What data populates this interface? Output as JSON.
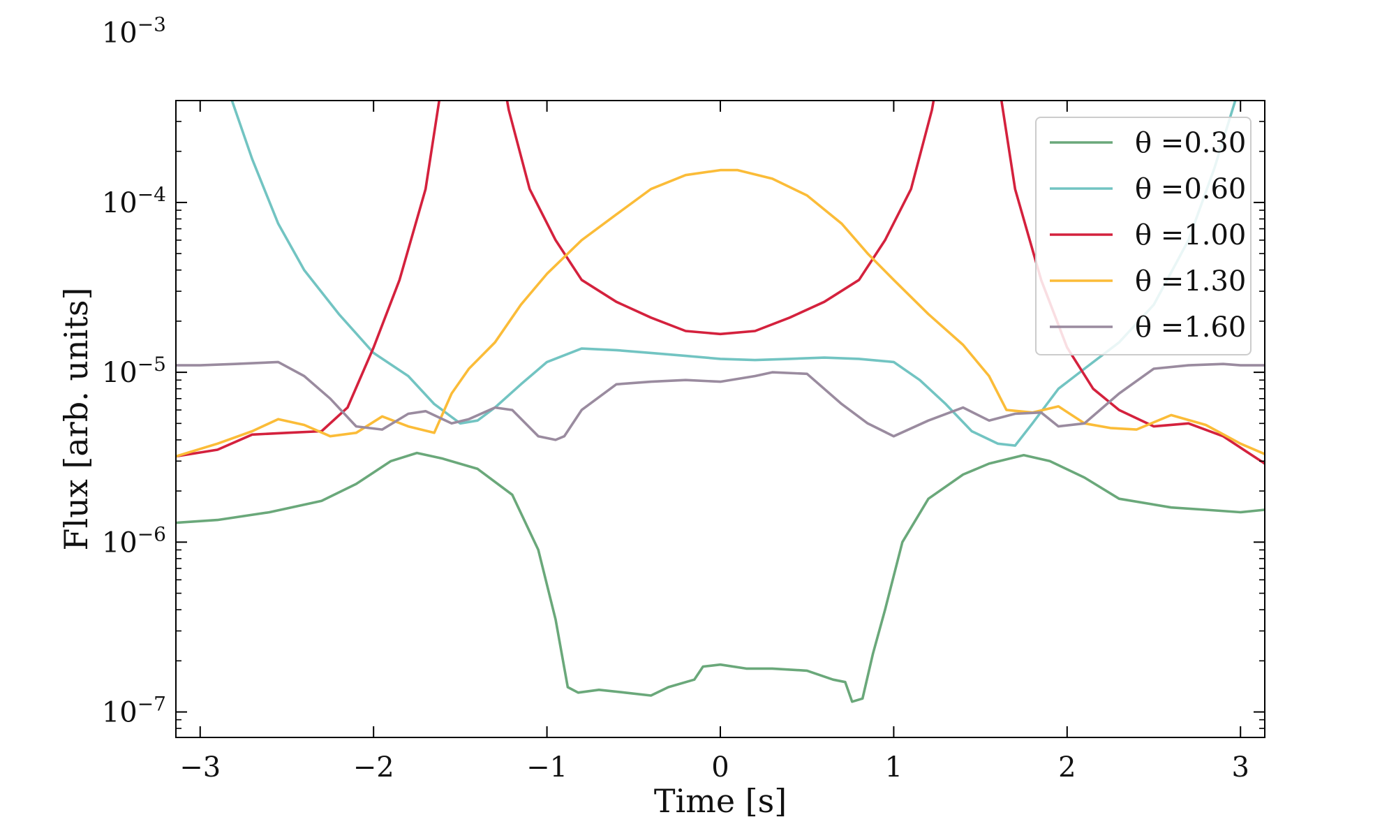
{
  "chart_data": {
    "type": "line",
    "xlabel": "Time [s]",
    "ylabel": "Flux [arb. units]",
    "xlim": [
      -3.14,
      3.14
    ],
    "ylim_log10": [
      -7.15,
      -3.4
    ],
    "yscale": "log",
    "x_ticks": [
      {
        "value": -3,
        "label": "−3"
      },
      {
        "value": -2,
        "label": "−2"
      },
      {
        "value": -1,
        "label": "−1"
      },
      {
        "value": 0,
        "label": "0"
      },
      {
        "value": 1,
        "label": "1"
      },
      {
        "value": 2,
        "label": "2"
      },
      {
        "value": 3,
        "label": "3"
      }
    ],
    "y_ticks": [
      {
        "exp": -7,
        "base": "10",
        "sup": "−7"
      },
      {
        "exp": -6,
        "base": "10",
        "sup": "−6"
      },
      {
        "exp": -5,
        "base": "10",
        "sup": "−5"
      },
      {
        "exp": -4,
        "base": "10",
        "sup": "−4"
      },
      {
        "exp": -3,
        "base": "10",
        "sup": "−3"
      }
    ],
    "grid": false,
    "legend_position": "top-right",
    "series": [
      {
        "name": "θ =0.30",
        "color": "#6aa87a",
        "x": [
          -3.14,
          -2.9,
          -2.6,
          -2.3,
          -2.1,
          -1.9,
          -1.75,
          -1.6,
          -1.4,
          -1.2,
          -1.05,
          -0.95,
          -0.88,
          -0.82,
          -0.7,
          -0.55,
          -0.4,
          -0.3,
          -0.15,
          -0.1,
          0.0,
          0.15,
          0.3,
          0.5,
          0.65,
          0.72,
          0.76,
          0.82,
          0.88,
          0.95,
          1.05,
          1.2,
          1.4,
          1.55,
          1.75,
          1.9,
          2.1,
          2.3,
          2.6,
          2.8,
          3.0,
          3.14
        ],
        "y": [
          1.3e-06,
          1.35e-06,
          1.5e-06,
          1.75e-06,
          2.2e-06,
          3e-06,
          3.35e-06,
          3.1e-06,
          2.7e-06,
          1.9e-06,
          9e-07,
          3.5e-07,
          1.4e-07,
          1.3e-07,
          1.35e-07,
          1.3e-07,
          1.25e-07,
          1.4e-07,
          1.55e-07,
          1.85e-07,
          1.9e-07,
          1.8e-07,
          1.8e-07,
          1.75e-07,
          1.55e-07,
          1.5e-07,
          1.15e-07,
          1.2e-07,
          2.2e-07,
          4e-07,
          1e-06,
          1.8e-06,
          2.5e-06,
          2.9e-06,
          3.25e-06,
          3e-06,
          2.4e-06,
          1.8e-06,
          1.6e-06,
          1.55e-06,
          1.5e-06,
          1.55e-06
        ]
      },
      {
        "name": "θ =0.60",
        "color": "#72c4c2",
        "x": [
          -3.14,
          -3.0,
          -2.85,
          -2.7,
          -2.55,
          -2.4,
          -2.2,
          -2.0,
          -1.8,
          -1.65,
          -1.5,
          -1.4,
          -1.3,
          -1.15,
          -1.0,
          -0.8,
          -0.6,
          -0.4,
          -0.2,
          0.0,
          0.2,
          0.4,
          0.6,
          0.8,
          1.0,
          1.15,
          1.3,
          1.45,
          1.6,
          1.7,
          1.8,
          1.95,
          2.1,
          2.3,
          2.5,
          2.7,
          2.85,
          3.0,
          3.14
        ],
        "y": [
          0.0011,
          0.00095,
          0.0005,
          0.00018,
          7.5e-05,
          4e-05,
          2.2e-05,
          1.3e-05,
          9.5e-06,
          6.5e-06,
          5e-06,
          5.2e-06,
          6.2e-06,
          8.5e-06,
          1.15e-05,
          1.38e-05,
          1.35e-05,
          1.3e-05,
          1.25e-05,
          1.2e-05,
          1.18e-05,
          1.2e-05,
          1.22e-05,
          1.2e-05,
          1.15e-05,
          9e-06,
          6.5e-06,
          4.5e-06,
          3.8e-06,
          3.7e-06,
          5e-06,
          8e-06,
          1.05e-05,
          1.5e-05,
          2.5e-05,
          6e-05,
          0.00016,
          0.0005,
          0.0011
        ]
      },
      {
        "name": "θ =1.00",
        "color": "#d4213d",
        "x": [
          -3.14,
          -2.9,
          -2.7,
          -2.5,
          -2.3,
          -2.15,
          -2.0,
          -1.85,
          -1.7,
          -1.6,
          -1.52,
          -1.45,
          -1.38,
          -1.3,
          -1.22,
          -1.1,
          -0.95,
          -0.8,
          -0.6,
          -0.4,
          -0.2,
          0.0,
          0.2,
          0.4,
          0.6,
          0.8,
          0.95,
          1.1,
          1.22,
          1.3,
          1.38,
          1.45,
          1.52,
          1.6,
          1.7,
          1.85,
          2.0,
          2.15,
          2.3,
          2.5,
          2.7,
          2.9,
          3.14
        ],
        "y": [
          3.2e-06,
          3.5e-06,
          4.3e-06,
          4.4e-06,
          4.5e-06,
          6.2e-06,
          1.4e-05,
          3.5e-05,
          0.00012,
          0.00055,
          0.00135,
          0.00165,
          0.0016,
          0.001,
          0.00035,
          0.00012,
          6e-05,
          3.5e-05,
          2.6e-05,
          2.1e-05,
          1.75e-05,
          1.68e-05,
          1.75e-05,
          2.1e-05,
          2.6e-05,
          3.5e-05,
          6e-05,
          0.00012,
          0.00035,
          0.001,
          0.0016,
          0.0017,
          0.0014,
          0.00055,
          0.00012,
          3.5e-05,
          1.4e-05,
          8e-06,
          6e-06,
          4.8e-06,
          5e-06,
          4.2e-06,
          2.9e-06
        ]
      },
      {
        "name": "θ =1.30",
        "color": "#fbbc38",
        "x": [
          -3.14,
          -2.9,
          -2.7,
          -2.55,
          -2.4,
          -2.25,
          -2.1,
          -1.95,
          -1.8,
          -1.65,
          -1.55,
          -1.45,
          -1.3,
          -1.15,
          -1.0,
          -0.8,
          -0.6,
          -0.4,
          -0.2,
          0.0,
          0.1,
          0.3,
          0.5,
          0.7,
          0.85,
          1.0,
          1.2,
          1.4,
          1.55,
          1.65,
          1.8,
          1.95,
          2.1,
          2.25,
          2.4,
          2.6,
          2.8,
          3.0,
          3.14
        ],
        "y": [
          3.2e-06,
          3.8e-06,
          4.5e-06,
          5.3e-06,
          4.9e-06,
          4.2e-06,
          4.4e-06,
          5.5e-06,
          4.8e-06,
          4.4e-06,
          7.5e-06,
          1.05e-05,
          1.5e-05,
          2.5e-05,
          3.8e-05,
          6e-05,
          8.5e-05,
          0.00012,
          0.000145,
          0.000155,
          0.000155,
          0.000138,
          0.00011,
          7.5e-05,
          5e-05,
          3.5e-05,
          2.2e-05,
          1.45e-05,
          9.5e-06,
          6e-06,
          5.8e-06,
          6.3e-06,
          5e-06,
          4.7e-06,
          4.6e-06,
          5.6e-06,
          4.9e-06,
          3.8e-06,
          3.3e-06
        ]
      },
      {
        "name": "θ =1.60",
        "color": "#9a8b9f",
        "x": [
          -3.14,
          -3.0,
          -2.8,
          -2.55,
          -2.4,
          -2.25,
          -2.1,
          -1.95,
          -1.8,
          -1.7,
          -1.55,
          -1.45,
          -1.3,
          -1.2,
          -1.05,
          -0.95,
          -0.9,
          -0.8,
          -0.6,
          -0.4,
          -0.2,
          0.0,
          0.2,
          0.3,
          0.5,
          0.7,
          0.85,
          1.0,
          1.2,
          1.4,
          1.55,
          1.7,
          1.85,
          1.95,
          2.1,
          2.3,
          2.5,
          2.7,
          2.9,
          3.0,
          3.14
        ],
        "y": [
          1.1e-05,
          1.1e-05,
          1.12e-05,
          1.15e-05,
          9.5e-06,
          7e-06,
          4.8e-06,
          4.6e-06,
          5.7e-06,
          5.9e-06,
          5e-06,
          5.3e-06,
          6.2e-06,
          6e-06,
          4.2e-06,
          4e-06,
          4.2e-06,
          6e-06,
          8.5e-06,
          8.8e-06,
          9e-06,
          8.8e-06,
          9.5e-06,
          1e-05,
          9.8e-06,
          6.5e-06,
          5e-06,
          4.2e-06,
          5.2e-06,
          6.2e-06,
          5.2e-06,
          5.7e-06,
          5.8e-06,
          4.8e-06,
          5e-06,
          7.5e-06,
          1.05e-05,
          1.1e-05,
          1.12e-05,
          1.1e-05,
          1.1e-05
        ]
      }
    ]
  }
}
